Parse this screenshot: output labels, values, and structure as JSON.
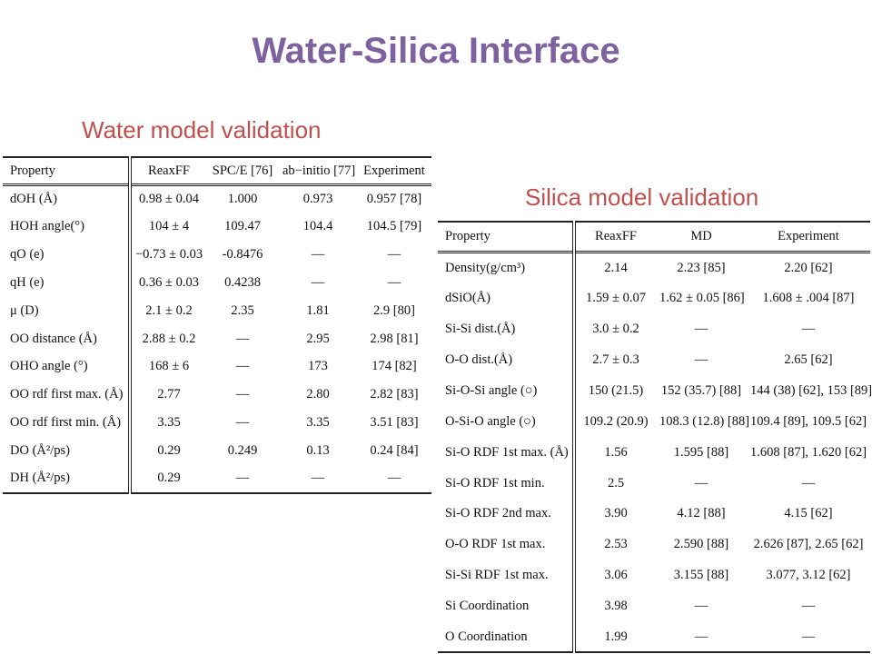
{
  "slide": {
    "title": "Water-Silica Interface",
    "water_subtitle": "Water model validation",
    "silica_subtitle": "Silica model validation"
  },
  "water_table": {
    "headers": [
      "Property",
      "ReaxFF",
      "SPC/E [76]",
      "ab−initio [77]",
      "Experiment"
    ],
    "rows": [
      [
        "dOH (Å)",
        "0.98 ± 0.04",
        "1.000",
        "0.973",
        "0.957 [78]"
      ],
      [
        "HOH angle(°)",
        "104 ± 4",
        "109.47",
        "104.4",
        "104.5 [79]"
      ],
      [
        "qO (e)",
        "−0.73 ± 0.03",
        "-0.8476",
        "—",
        "—"
      ],
      [
        "qH (e)",
        "0.36 ± 0.03",
        "0.4238",
        "—",
        "—"
      ],
      [
        "μ (D)",
        "2.1 ± 0.2",
        "2.35",
        "1.81",
        "2.9 [80]"
      ],
      [
        "OO distance (Å)",
        "2.88 ± 0.2",
        "—",
        "2.95",
        "2.98 [81]"
      ],
      [
        "OHO angle (°)",
        "168 ± 6",
        "—",
        "173",
        "174 [82]"
      ],
      [
        "OO rdf first max. (Å)",
        "2.77",
        "—",
        "2.80",
        "2.82 [83]"
      ],
      [
        "OO rdf first min. (Å)",
        "3.35",
        "—",
        "3.35",
        "3.51 [83]"
      ],
      [
        "DO (Å²/ps)",
        "0.29",
        "0.249",
        "0.13",
        "0.24 [84]"
      ],
      [
        "DH (Å²/ps)",
        "0.29",
        "—",
        "—",
        "—"
      ]
    ]
  },
  "silica_table": {
    "headers": [
      "Property",
      "ReaxFF",
      "MD",
      "Experiment"
    ],
    "rows": [
      [
        "Density(g/cm³)",
        "2.14",
        "2.23 [85]",
        "2.20 [62]"
      ],
      [
        "dSiO(Å)",
        "1.59 ± 0.07",
        "1.62 ± 0.05 [86]",
        "1.608 ± .004 [87]"
      ],
      [
        "Si-Si dist.(Å)",
        "3.0 ± 0.2",
        "—",
        "—"
      ],
      [
        "O-O dist.(Å)",
        "2.7 ± 0.3",
        "—",
        "2.65 [62]"
      ],
      [
        "Si-O-Si angle (○)",
        "150 (21.5)",
        "152 (35.7) [88]",
        "144 (38) [62], 153 [89]"
      ],
      [
        "O-Si-O angle (○)",
        "109.2 (20.9)",
        "108.3 (12.8) [88]",
        "109.4 [89], 109.5 [62]"
      ],
      [
        "Si-O RDF 1st max. (Å)",
        "1.56",
        "1.595 [88]",
        "1.608 [87], 1.620 [62]"
      ],
      [
        "Si-O RDF 1st min.",
        "2.5",
        "—",
        "—"
      ],
      [
        "Si-O RDF 2nd max.",
        "3.90",
        "4.12 [88]",
        "4.15 [62]"
      ],
      [
        "O-O RDF 1st max.",
        "2.53",
        "2.590 [88]",
        "2.626 [87], 2.65 [62]"
      ],
      [
        "Si-Si RDF 1st max.",
        "3.06",
        "3.155 [88]",
        "3.077, 3.12 [62]"
      ],
      [
        "Si Coordination",
        "3.98",
        "—",
        "—"
      ],
      [
        "O Coordination",
        "1.99",
        "—",
        "—"
      ]
    ]
  }
}
